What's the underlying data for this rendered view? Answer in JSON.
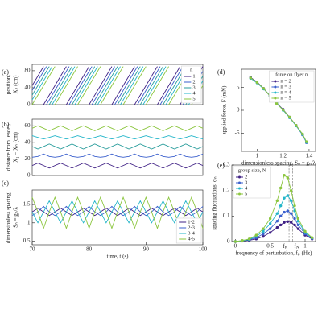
{
  "chart_data": [
    {
      "type": "line",
      "panel": "(a)",
      "ylabel": [
        "position,",
        "Xₙ (cm)"
      ],
      "xlim": [
        70,
        100
      ],
      "ylim": [
        0,
        95
      ],
      "yticks": [
        0,
        40,
        80
      ],
      "legend_title": "n",
      "legend": "upper right",
      "series": [
        {
          "name": "1",
          "color": "#3e1f84",
          "x": [
            70,
            72,
            72,
            72,
            76,
            76,
            76,
            80,
            80,
            80,
            84,
            84,
            84,
            88,
            88,
            88,
            92,
            92,
            92,
            96,
            96,
            96,
            100
          ],
          "values": [
            45,
            90,
            null,
            0,
            90,
            null,
            0,
            90,
            null,
            0,
            90,
            null,
            0,
            90,
            null,
            0,
            90,
            null,
            0,
            90,
            null,
            0,
            90
          ]
        },
        {
          "name": "2",
          "color": "#3a5fcd",
          "x": [
            70,
            72.5,
            72.5,
            72.5,
            76.5,
            76.5,
            76.5,
            80.5,
            80.5,
            80.5,
            84.5,
            84.5,
            84.5,
            88.5,
            88.5,
            88.5,
            92.5,
            92.5,
            92.5,
            96.5,
            96.5,
            96.5,
            100
          ],
          "values": [
            33.75,
            90,
            null,
            0,
            90,
            null,
            0,
            90,
            null,
            0,
            90,
            null,
            0,
            90,
            null,
            0,
            90,
            null,
            0,
            90,
            null,
            0,
            78.75
          ]
        },
        {
          "name": "3",
          "color": "#2a9d9c",
          "x": [
            70,
            73,
            73,
            73,
            77,
            77,
            77,
            81,
            81,
            81,
            85,
            85,
            85,
            89,
            89,
            89,
            93,
            93,
            93,
            97,
            97,
            97,
            100
          ],
          "values": [
            22.5,
            90,
            null,
            0,
            90,
            null,
            0,
            90,
            null,
            0,
            90,
            null,
            0,
            90,
            null,
            0,
            90,
            null,
            0,
            90,
            null,
            0,
            67.5
          ]
        },
        {
          "name": "4",
          "color": "#22b5c9",
          "x": [
            70,
            73.5,
            73.5,
            73.5,
            77.5,
            77.5,
            77.5,
            81.5,
            81.5,
            81.5,
            85.5,
            85.5,
            85.5,
            89.5,
            89.5,
            89.5,
            93.5,
            93.5,
            93.5,
            97.5,
            97.5,
            97.5,
            100
          ],
          "values": [
            11.25,
            90,
            null,
            0,
            90,
            null,
            0,
            90,
            null,
            0,
            90,
            null,
            0,
            90,
            null,
            0,
            90,
            null,
            0,
            90,
            null,
            0,
            56.25
          ]
        },
        {
          "name": "5",
          "color": "#8cc63f",
          "x": [
            70,
            74,
            74,
            74,
            78,
            78,
            78,
            82,
            82,
            82,
            86,
            86,
            86,
            90,
            90,
            90,
            94,
            94,
            94,
            98,
            98,
            98,
            100
          ],
          "values": [
            0,
            90,
            null,
            0,
            90,
            null,
            0,
            90,
            null,
            0,
            90,
            null,
            0,
            90,
            null,
            0,
            90,
            null,
            0,
            90,
            null,
            0,
            45
          ]
        }
      ]
    },
    {
      "type": "line",
      "panel": "(b)",
      "ylabel": [
        "distance from leader,",
        "X₁ − Xₙ (cm)"
      ],
      "xlim": [
        70,
        100
      ],
      "ylim": [
        0,
        68
      ],
      "yticks": [
        0,
        20,
        40,
        60
      ],
      "x": [
        70,
        71,
        72,
        73,
        74,
        75,
        76,
        77,
        78,
        79,
        80,
        81,
        82,
        83,
        84,
        85,
        86,
        87,
        88,
        89,
        90,
        91,
        92,
        93,
        94,
        95,
        96,
        97,
        98,
        99,
        100
      ],
      "series": [
        {
          "color": "#3e1f84",
          "values": [
            12,
            15,
            12,
            9,
            12,
            15,
            12,
            9,
            12,
            15,
            12,
            9,
            12,
            15,
            12,
            9,
            12,
            15,
            12,
            9,
            12,
            15,
            12,
            9,
            12,
            15,
            12,
            9,
            12,
            15,
            12
          ]
        },
        {
          "color": "#3a5fcd",
          "values": [
            22,
            23,
            26,
            23,
            22,
            23,
            26,
            23,
            22,
            23,
            26,
            23,
            22,
            23,
            26,
            23,
            22,
            23,
            26,
            23,
            22,
            23,
            26,
            23,
            22,
            23,
            26,
            23,
            22,
            23,
            26
          ]
        },
        {
          "color": "#2a9d9c",
          "values": [
            35,
            32,
            35,
            38,
            35,
            32,
            35,
            38,
            35,
            32,
            35,
            38,
            35,
            32,
            35,
            38,
            35,
            32,
            35,
            38,
            35,
            32,
            35,
            38,
            35,
            32,
            35,
            38,
            35,
            32,
            35
          ]
        },
        {
          "color": "#22b5c9",
          "values": [
            48,
            46,
            44,
            46,
            48,
            46,
            44,
            46,
            48,
            46,
            44,
            46,
            48,
            46,
            44,
            46,
            48,
            46,
            44,
            46,
            48,
            46,
            44,
            46,
            48,
            46,
            44,
            46,
            48,
            46,
            44
          ]
        },
        {
          "color": "#8cc63f",
          "values": [
            57,
            60,
            57,
            54,
            57,
            60,
            57,
            54,
            57,
            60,
            57,
            54,
            57,
            60,
            57,
            54,
            57,
            60,
            57,
            54,
            57,
            60,
            57,
            54,
            57,
            60,
            57,
            54,
            57,
            60,
            57
          ]
        }
      ]
    },
    {
      "type": "line",
      "panel": "(c)",
      "ylabel": [
        "dimensionless spacing,",
        "Sₙ = gₙ/λ"
      ],
      "xlabel": "time, t (s)",
      "xlim": [
        70,
        100
      ],
      "ylim": [
        0.4,
        1.9
      ],
      "yticks": [
        0.5,
        1,
        1.5
      ],
      "xticks": [
        70,
        80,
        90,
        100
      ],
      "legend": "lower right",
      "x": [
        70,
        71,
        72,
        73,
        74,
        75,
        76,
        77,
        78,
        79,
        80,
        81,
        82,
        83,
        84,
        85,
        86,
        87,
        88,
        89,
        90,
        91,
        92,
        93,
        94,
        95,
        96,
        97,
        98,
        99,
        100
      ],
      "series": [
        {
          "name": "1-2",
          "color": "#3e1f84",
          "values": [
            1.3,
            1.4,
            1.3,
            1.2,
            1.3,
            1.4,
            1.3,
            1.2,
            1.3,
            1.4,
            1.3,
            1.2,
            1.3,
            1.4,
            1.3,
            1.2,
            1.3,
            1.4,
            1.3,
            1.2,
            1.3,
            1.4,
            1.3,
            1.2,
            1.3,
            1.4,
            1.3,
            1.2,
            1.3,
            1.4,
            1.3
          ]
        },
        {
          "name": "2-3",
          "color": "#3a5fcd",
          "values": [
            1.2,
            1.3,
            1.45,
            1.3,
            1.2,
            1.3,
            1.45,
            1.3,
            1.2,
            1.3,
            1.45,
            1.3,
            1.2,
            1.3,
            1.45,
            1.3,
            1.2,
            1.3,
            1.45,
            1.3,
            1.2,
            1.3,
            1.45,
            1.3,
            1.2,
            1.3,
            1.45,
            1.3,
            1.2,
            1.3,
            1.45
          ]
        },
        {
          "name": "3-4",
          "color": "#22b5c9",
          "values": [
            1.3,
            1.0,
            1.3,
            1.6,
            1.3,
            1.0,
            1.3,
            1.6,
            1.3,
            1.0,
            1.3,
            1.6,
            1.3,
            1.0,
            1.3,
            1.6,
            1.3,
            1.0,
            1.3,
            1.6,
            1.3,
            1.0,
            1.3,
            1.6,
            1.3,
            1.0,
            1.3,
            1.6,
            1.3,
            1.0,
            1.3
          ]
        },
        {
          "name": "4-5",
          "color": "#8cc63f",
          "values": [
            1.7,
            1.3,
            0.85,
            1.3,
            1.7,
            1.3,
            0.85,
            1.3,
            1.7,
            1.3,
            0.85,
            1.3,
            1.7,
            1.3,
            0.85,
            1.3,
            1.7,
            1.3,
            0.85,
            1.3,
            1.7,
            1.3,
            0.85,
            1.3,
            1.7,
            1.3,
            0.85,
            1.3,
            1.7,
            1.3,
            0.85
          ]
        }
      ]
    },
    {
      "type": "line",
      "panel": "(d)",
      "markers": true,
      "ylabel": [
        "applied force, F (mN)"
      ],
      "xlabel": "dimensionless spacing, Sₙ = gₙ/λ",
      "xlim": [
        0.88,
        1.45
      ],
      "ylim": [
        -9,
        9
      ],
      "xticks": [
        1,
        1.2,
        1.4
      ],
      "yticks": [
        -5,
        0,
        5
      ],
      "legend_title": "force on flyer n",
      "legend": "upper right",
      "x": [
        0.95,
        1.0,
        1.05,
        1.1,
        1.15,
        1.2,
        1.25,
        1.3,
        1.35,
        1.38
      ],
      "series": [
        {
          "name": "n = 2",
          "color": "#3e1f84",
          "values": [
            7.2,
            6.2,
            4.8,
            3.2,
            1.6,
            0.2,
            -1.5,
            -3.3,
            -5.3,
            -7.0
          ]
        },
        {
          "name": "n = 3",
          "color": "#3a5fcd",
          "values": [
            7.1,
            6.1,
            4.7,
            3.1,
            1.5,
            0.1,
            -1.6,
            -3.4,
            -5.4,
            -7.1
          ]
        },
        {
          "name": "n = 4",
          "color": "#22b5c9",
          "values": [
            7.0,
            6.0,
            4.7,
            3.2,
            1.6,
            0.0,
            -1.6,
            -3.4,
            -5.3,
            -7.0
          ]
        },
        {
          "name": "n = 5",
          "color": "#8cc63f",
          "values": [
            7.1,
            6.1,
            4.8,
            3.1,
            1.5,
            0.1,
            -1.5,
            -3.3,
            -5.2,
            -6.9
          ]
        }
      ]
    },
    {
      "type": "line",
      "panel": "(e)",
      "markers": true,
      "ylabel": [
        "spacing fluctuations, σₙ"
      ],
      "xlabel": "frequency of perturbation, fₚ (Hz)",
      "xlim": [
        -0.05,
        1.15
      ],
      "ylim": [
        0,
        0.3
      ],
      "xticks": [
        0,
        0.5,
        1
      ],
      "yticks": [
        0,
        0.1,
        0.2,
        0.3
      ],
      "legend_title": "group size, N",
      "legend": "upper left",
      "vlines": [
        {
          "value": 0.77,
          "label": "f",
          "sub": "R"
        },
        {
          "value": 0.82,
          "label": "f",
          "sub": "N"
        }
      ],
      "x": [
        0,
        0.1,
        0.2,
        0.3,
        0.4,
        0.5,
        0.6,
        0.65,
        0.7,
        0.75,
        0.8,
        0.85,
        0.9,
        1.0,
        1.1
      ],
      "series": [
        {
          "name": "2",
          "color": "#3e1f84",
          "values": [
            0,
            0.002,
            0.005,
            0.01,
            0.02,
            0.035,
            0.055,
            0.065,
            0.075,
            0.078,
            0.075,
            0.065,
            0.05,
            0.025,
            0.01
          ]
        },
        {
          "name": "3",
          "color": "#3a5fcd",
          "values": [
            0,
            0.003,
            0.007,
            0.015,
            0.03,
            0.05,
            0.08,
            0.1,
            0.115,
            0.12,
            0.11,
            0.09,
            0.065,
            0.03,
            0.012
          ]
        },
        {
          "name": "4",
          "color": "#22b5c9",
          "values": [
            0,
            0.003,
            0.008,
            0.02,
            0.04,
            0.07,
            0.11,
            0.14,
            0.17,
            0.18,
            0.16,
            0.12,
            0.08,
            0.035,
            0.014
          ]
        },
        {
          "name": "5",
          "color": "#8cc63f",
          "values": [
            0,
            0.004,
            0.01,
            0.025,
            0.05,
            0.09,
            0.16,
            0.21,
            0.26,
            0.25,
            0.2,
            0.14,
            0.09,
            0.04,
            0.015
          ]
        }
      ]
    }
  ]
}
